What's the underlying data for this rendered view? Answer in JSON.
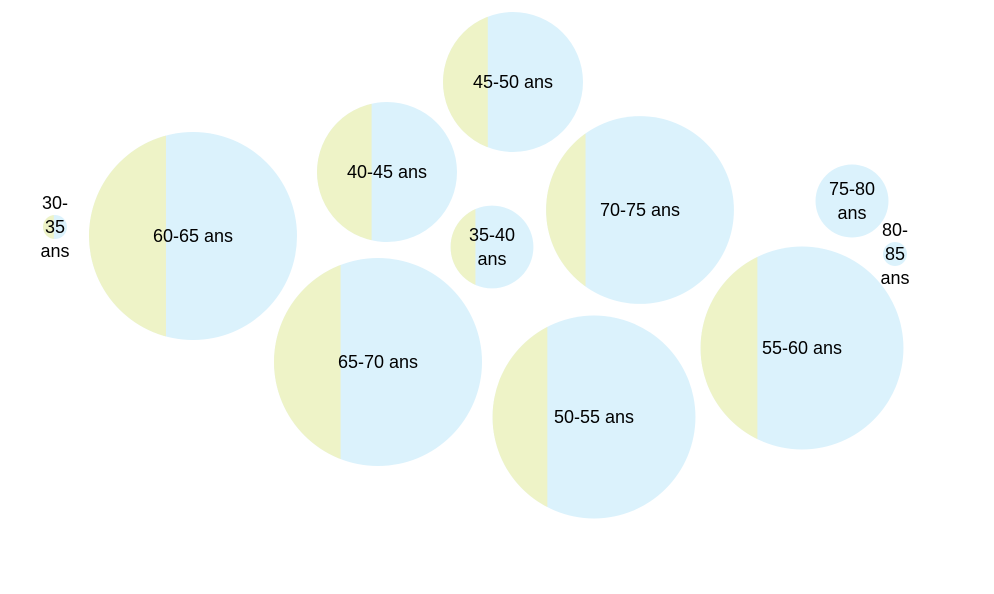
{
  "chart_data": {
    "type": "bubble",
    "title": "",
    "colors": {
      "part_a": "#eef3c7",
      "part_b": "#dbf2fc"
    },
    "bubbles": [
      {
        "label": "30-35 ans",
        "lines": [
          "30-",
          "35",
          "ans"
        ],
        "size": 1,
        "share_a": 0.45
      },
      {
        "label": "35-40 ans",
        "lines": [
          "35-40",
          "ans"
        ],
        "size": 49,
        "share_a": 0.3
      },
      {
        "label": "40-45 ans",
        "lines": [
          "40-45 ans"
        ],
        "size": 140,
        "share_a": 0.39
      },
      {
        "label": "45-50 ans",
        "lines": [
          "45-50 ans"
        ],
        "size": 140,
        "share_a": 0.32
      },
      {
        "label": "50-55 ans",
        "lines": [
          "50-55 ans"
        ],
        "size": 294,
        "share_a": 0.27
      },
      {
        "label": "55-60 ans",
        "lines": [
          "55-60 ans"
        ],
        "size": 294,
        "share_a": 0.28
      },
      {
        "label": "60-65 ans",
        "lines": [
          "60-65 ans"
        ],
        "size": 309,
        "share_a": 0.37
      },
      {
        "label": "65-70 ans",
        "lines": [
          "65-70 ans"
        ],
        "size": 309,
        "share_a": 0.32
      },
      {
        "label": "70-75 ans",
        "lines": [
          "70-75 ans"
        ],
        "size": 252,
        "share_a": 0.21
      },
      {
        "label": "75-80 ans",
        "lines": [
          "75-80",
          "ans"
        ],
        "size": 38,
        "share_a": 0.0
      },
      {
        "label": "80-85 ans",
        "lines": [
          "80-",
          "85",
          "ans"
        ],
        "size": 1,
        "share_a": 0.0
      }
    ]
  }
}
